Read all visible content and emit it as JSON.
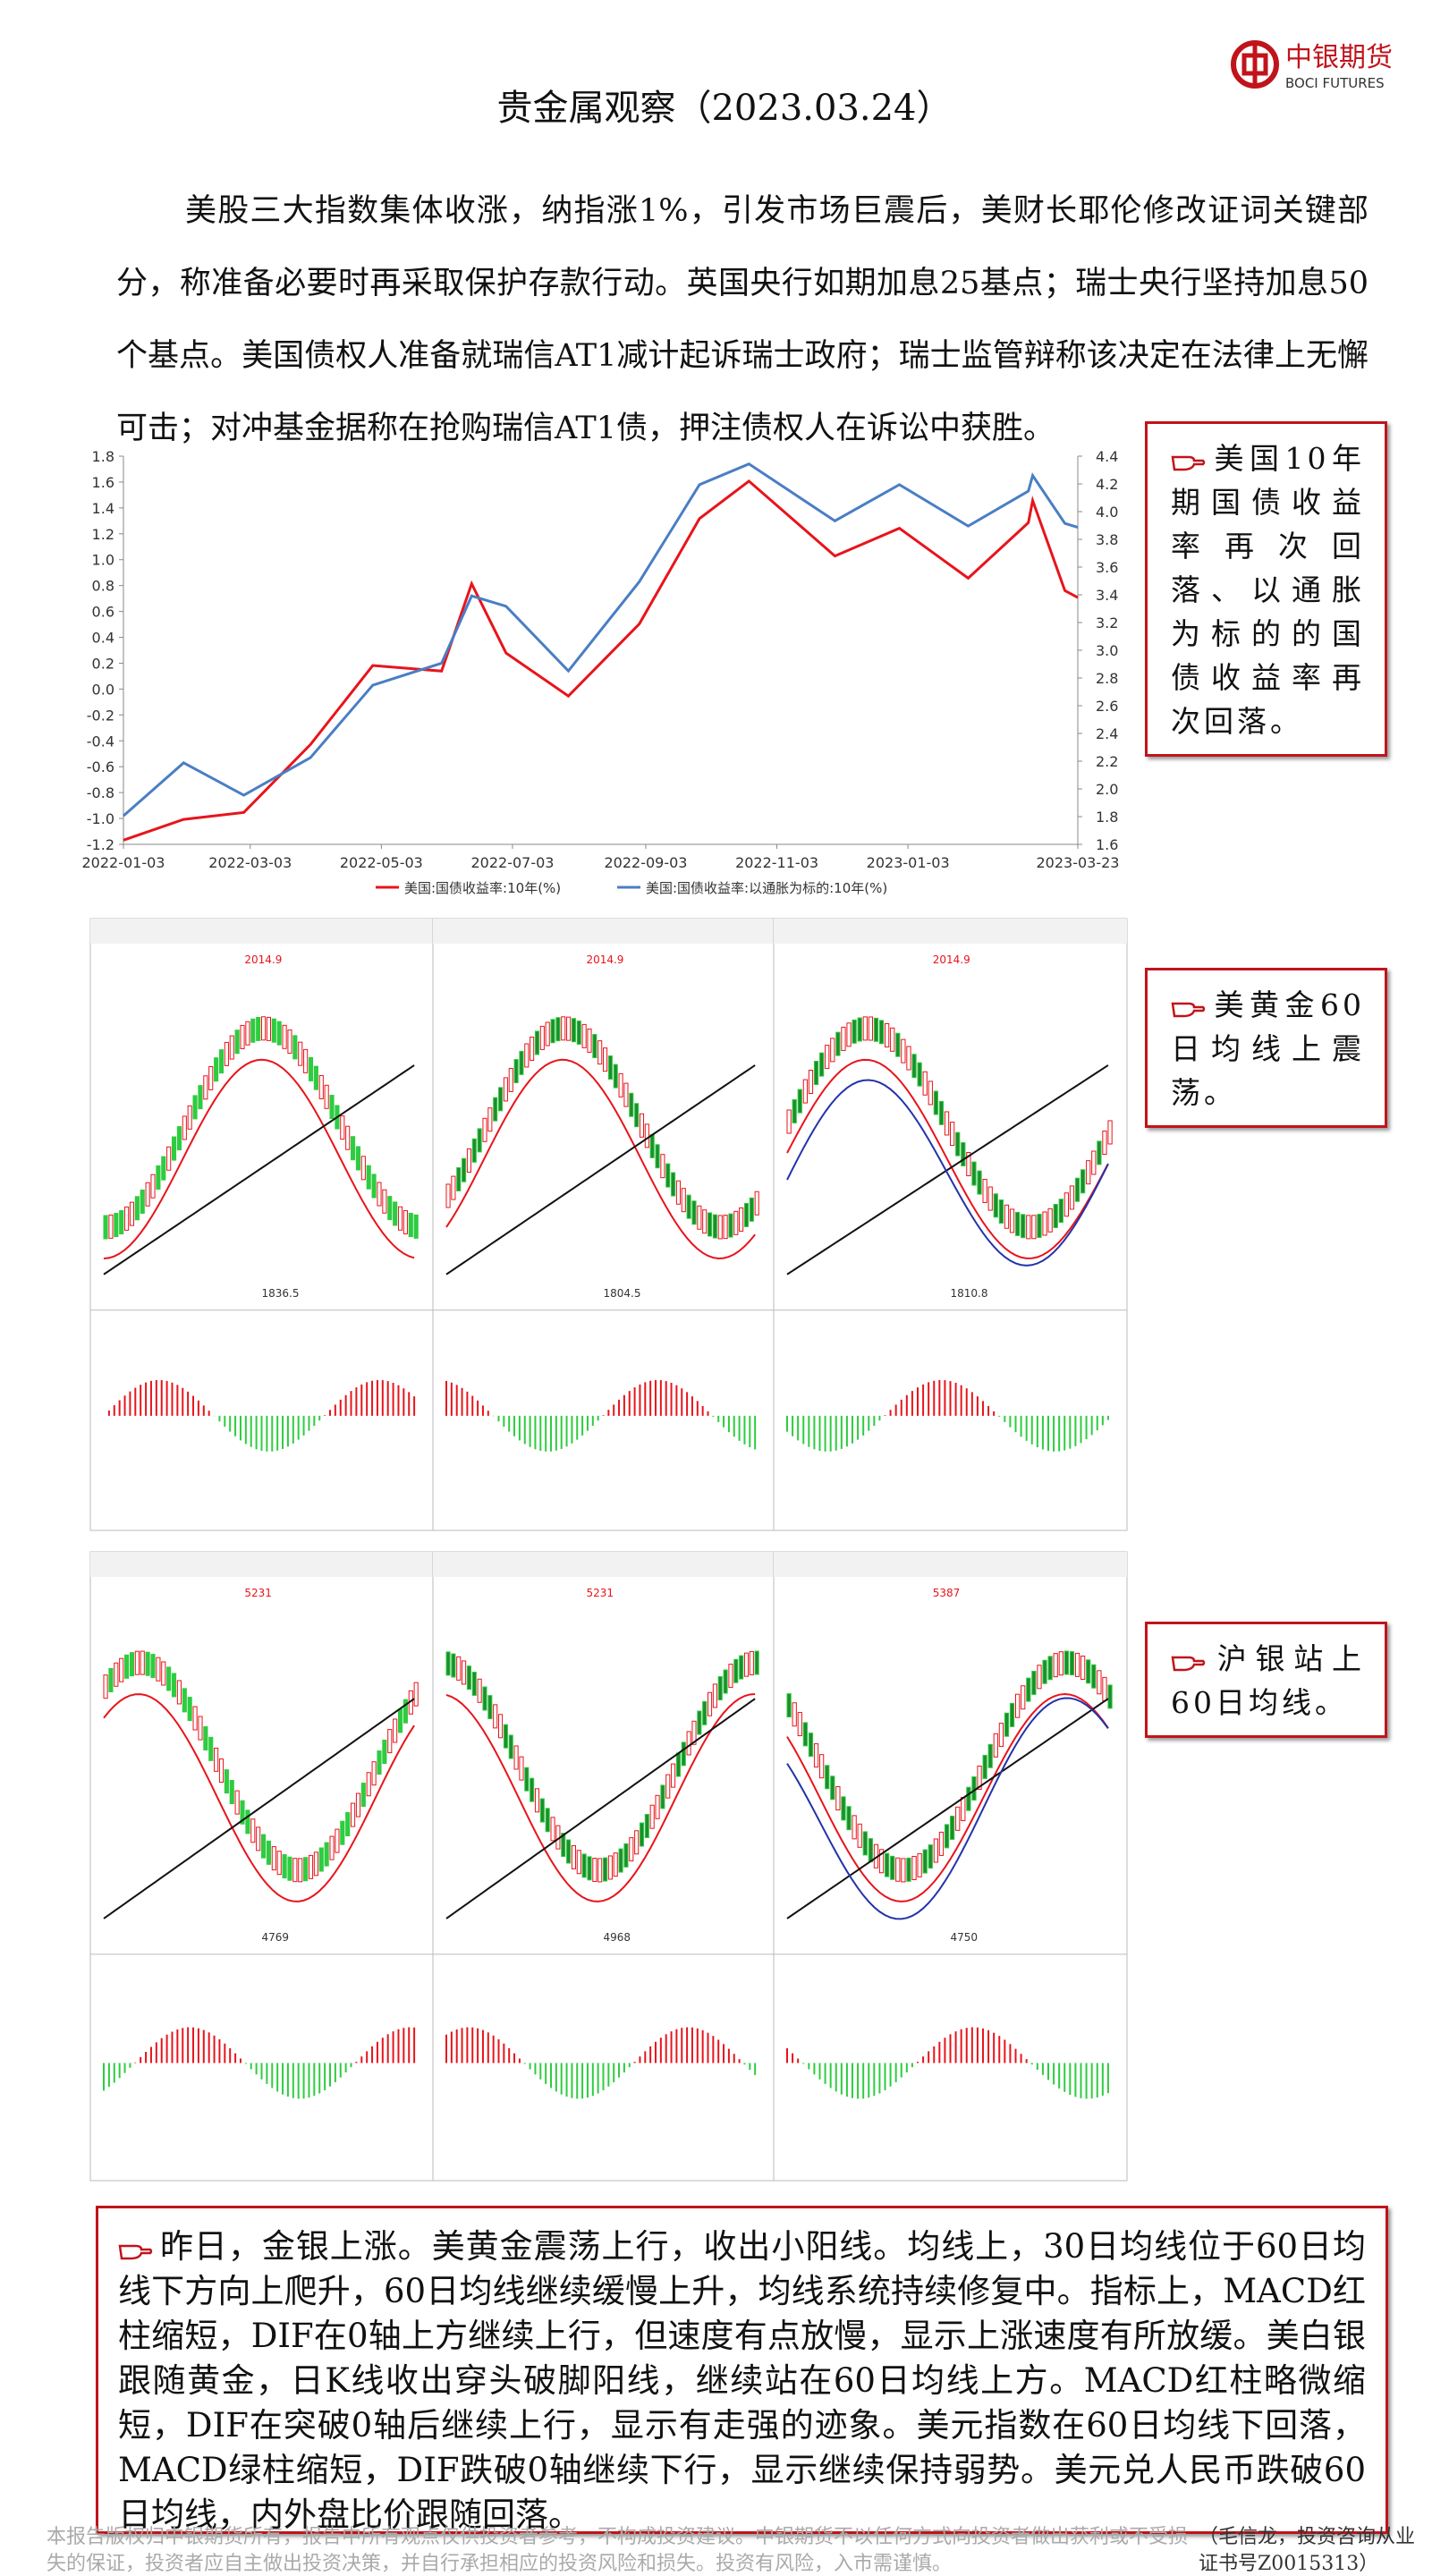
{
  "header": {
    "title": "贵金属观察（2023.03.24）",
    "logo_cn": "中银期货",
    "logo_en": "BOCI FUTURES"
  },
  "intro": "美股三大指数集体收涨，纳指涨1%，引发市场巨震后，美财长耶伦修改证词关键部分，称准备必要时再采取保护存款行动。英国央行如期加息25基点；瑞士央行坚持加息50个基点。美国债权人准备就瑞信AT1减计起诉瑞士政府；瑞士监管辩称该决定在法律上无懈可击；对冲基金据称在抢购瑞信AT1债，押注债权人在诉讼中获胜。",
  "chart_data": {
    "type": "line",
    "x": [
      "2022-01-03",
      "2022-01-31",
      "2022-02-28",
      "2022-03-31",
      "2022-04-29",
      "2022-05-31",
      "2022-06-14",
      "2022-06-30",
      "2022-07-29",
      "2022-08-31",
      "2022-09-28",
      "2022-10-21",
      "2022-11-30",
      "2022-12-30",
      "2023-01-31",
      "2023-02-28",
      "2023-03-02",
      "2023-03-17",
      "2023-03-23"
    ],
    "xlim": [
      "2022-01-03",
      "2023-03-23"
    ],
    "xticks": [
      "2022-01-03",
      "2022-03-03",
      "2022-05-03",
      "2022-07-03",
      "2022-09-03",
      "2022-11-03",
      "2023-01-03",
      "2023-03-23"
    ],
    "series": [
      {
        "name": "美国:国债收益率:10年(%)",
        "color": "#e8141b",
        "axis": "y2",
        "values": [
          1.63,
          1.78,
          1.83,
          2.32,
          2.89,
          2.85,
          3.48,
          2.98,
          2.67,
          3.19,
          3.95,
          4.22,
          3.68,
          3.88,
          3.52,
          3.92,
          4.08,
          3.43,
          3.38
        ]
      },
      {
        "name": "美国:国债收益率:以通胀为标的:10年(%)",
        "color": "#4a7ec4",
        "values": [
          -0.98,
          -0.57,
          -0.82,
          -0.53,
          0.03,
          0.2,
          0.72,
          0.64,
          0.14,
          0.83,
          1.58,
          1.74,
          1.3,
          1.58,
          1.26,
          1.53,
          1.65,
          1.28,
          1.25
        ]
      }
    ],
    "ylim": [
      -1.2,
      1.8
    ],
    "yticks": [
      -1.2,
      {
        "value": -1,
        "label": "-1.0"
      },
      -0.8,
      -0.6,
      -0.4,
      -0.2,
      {
        "value": 0,
        "label": "0.0"
      },
      0.2,
      0.4,
      0.6,
      0.8,
      {
        "value": 1,
        "label": "1.0"
      },
      1.2,
      1.4,
      1.6,
      1.8
    ],
    "y2lim": [
      1.6,
      4.4
    ],
    "y2ticks": [
      1.6,
      1.8,
      {
        "value": 2,
        "label": "2.0"
      },
      2.2,
      2.4,
      2.6,
      2.8,
      {
        "value": 3,
        "label": "3.0"
      },
      3.2,
      3.4,
      3.6,
      3.8,
      {
        "value": 4,
        "label": "4.0"
      },
      4.2,
      4.4
    ]
  },
  "notes": [
    "美国10年期国债收益率再次回落、以通胀为标的的国债收益率再次回落。",
    "美黄金60日均线上震荡。",
    "沪银站上60日均线。"
  ],
  "panels": [
    {
      "high": "2014.9",
      "low": "1836.5"
    },
    {
      "high": "2014.9",
      "low": "1804.5"
    },
    {
      "high": "2014.9",
      "low": "1810.8"
    },
    {
      "high": "5231",
      "low": "4769"
    },
    {
      "high": "5231",
      "low": "4968"
    },
    {
      "high": "5387",
      "low": "4750"
    }
  ],
  "summary": "昨日，金银上涨。美黄金震荡上行，收出小阳线。均线上，30日均线位于60日均线下方向上爬升，60日均线继续缓慢上升，均线系统持续修复中。指标上，MACD红柱缩短，DIF在0轴上方继续上行，但速度有点放慢，显示上涨速度有所放缓。美白银跟随黄金，日K线收出穿头破脚阳线，继续站在60日均线上方。MACD红柱略微缩短，DIF在突破0轴后继续上行，显示有走强的迹象。美元指数在60日均线下回落，MACD绿柱缩短，DIF跌破0轴继续下行，显示继续保持弱势。美元兑人民币跌破60日均线，内外盘比价跟随回落。",
  "footer": {
    "disclaimer": "本报告版权归中银期货所有，报告中所有观点仅供投资者参考，不构成投资建议。中银期货不以任何方式向投资者做出获利或不受损失的保证，投资者应自主做出投资决策，并自行承担相应的投资风险和损失。投资有风险，入市需谨慎。",
    "author": "（毛信龙，投资咨询从业证书号Z0015313）"
  }
}
